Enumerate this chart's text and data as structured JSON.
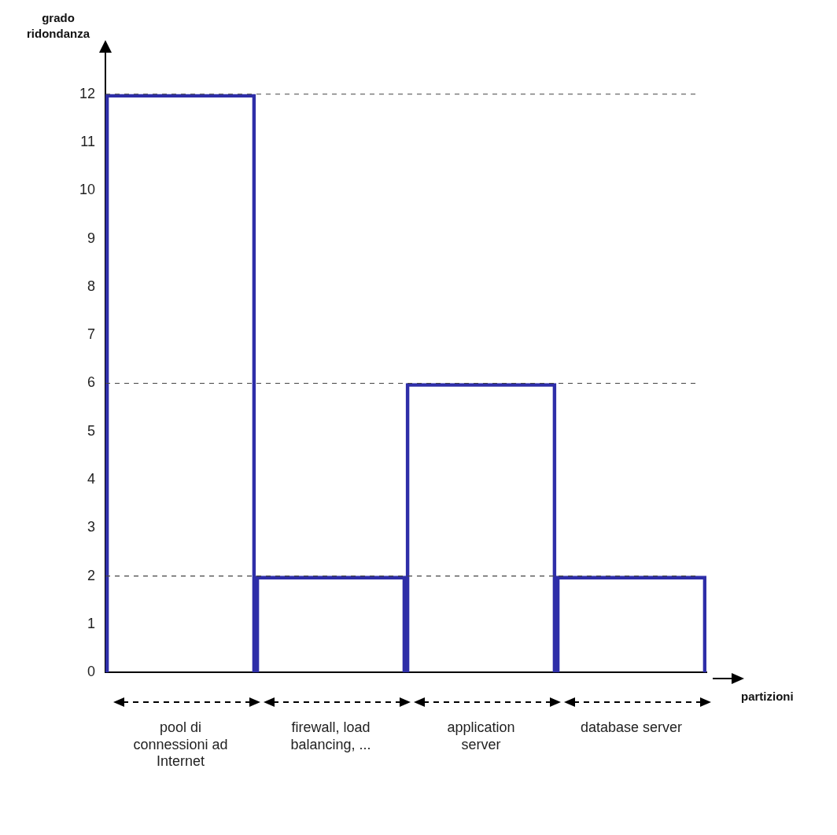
{
  "chart_data": {
    "type": "bar",
    "xlabel": "partizioni",
    "ylabel": "grado ridondanza",
    "categories": [
      "pool di connessioni ad Internet",
      "firewall, load balancing, ...",
      "application server",
      "database server"
    ],
    "values": [
      12,
      2,
      6,
      2
    ],
    "color": "#2e2ea8",
    "ylim": [
      0,
      12.6
    ],
    "yticks": [
      0,
      1,
      2,
      3,
      4,
      5,
      6,
      7,
      8,
      9,
      10,
      11,
      12
    ],
    "grid": false,
    "legend": false,
    "ref_lines": [
      {
        "axis": "y",
        "value": 12,
        "line_style": "dashed",
        "color": "#444444"
      },
      {
        "axis": "y",
        "value": 6,
        "line_style": "dashed",
        "color": "#444444"
      },
      {
        "axis": "y",
        "value": 2,
        "line_style": "dashed",
        "color": "#444444"
      }
    ]
  }
}
